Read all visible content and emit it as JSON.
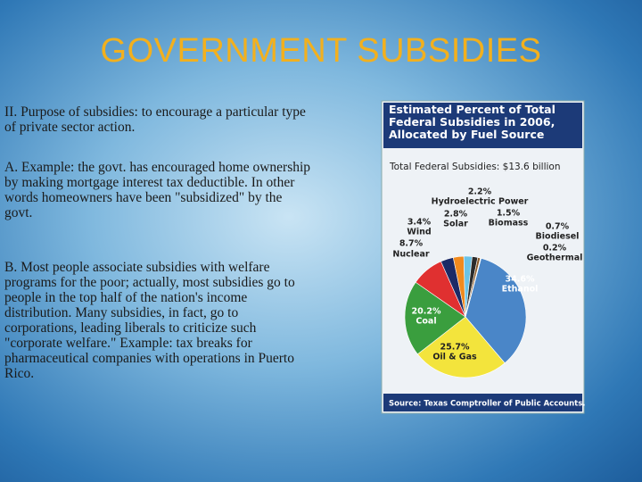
{
  "title": "GOVERNMENT SUBSIDIES",
  "paragraphs": [
    "II. Purpose of subsidies:  to encourage a particular type of private sector action.",
    "A. Example:  the govt. has encouraged home ownership by making mortgage interest tax  deductible.  In other words homeowners have been \"subsidized\" by the govt.",
    "B. Most people associate subsidies with welfare programs for the poor; actually, most subsidies go to people in the top half of the nation's income distribution.  Many subsidies, in fact, go to corporations, leading liberals to criticize such \"corporate welfare.\"  Example:  tax breaks for pharmaceutical companies with operations in Puerto Rico."
  ],
  "chart_data": {
    "type": "pie",
    "title": "Estimated Percent of Total Federal Subsidies in 2006, Allocated by Fuel Source",
    "subtitle": "Total Federal Subsidies: $13.6 billion",
    "source": "Source: Texas Comptroller of Public Accounts.",
    "categories": [
      "Ethanol",
      "Oil & Gas",
      "Coal",
      "Nuclear",
      "Wind",
      "Solar",
      "Hydroelectric Power",
      "Biomass",
      "Biodiesel",
      "Geothermal"
    ],
    "values": [
      34.6,
      25.7,
      20.2,
      8.7,
      3.4,
      2.8,
      2.2,
      1.5,
      0.7,
      0.2
    ],
    "value_labels": [
      "34.6%",
      "25.7%",
      "20.2%",
      "8.7%",
      "3.4%",
      "2.8%",
      "2.2%",
      "1.5%",
      "0.7%",
      "0.2%"
    ],
    "colors": [
      "#4a86c8",
      "#f3e43c",
      "#3a9e3e",
      "#e03030",
      "#1b2a66",
      "#f08a1e",
      "#6cc3e6",
      "#2b2b2b",
      "#8a5a2a",
      "#e8e8d8"
    ]
  }
}
